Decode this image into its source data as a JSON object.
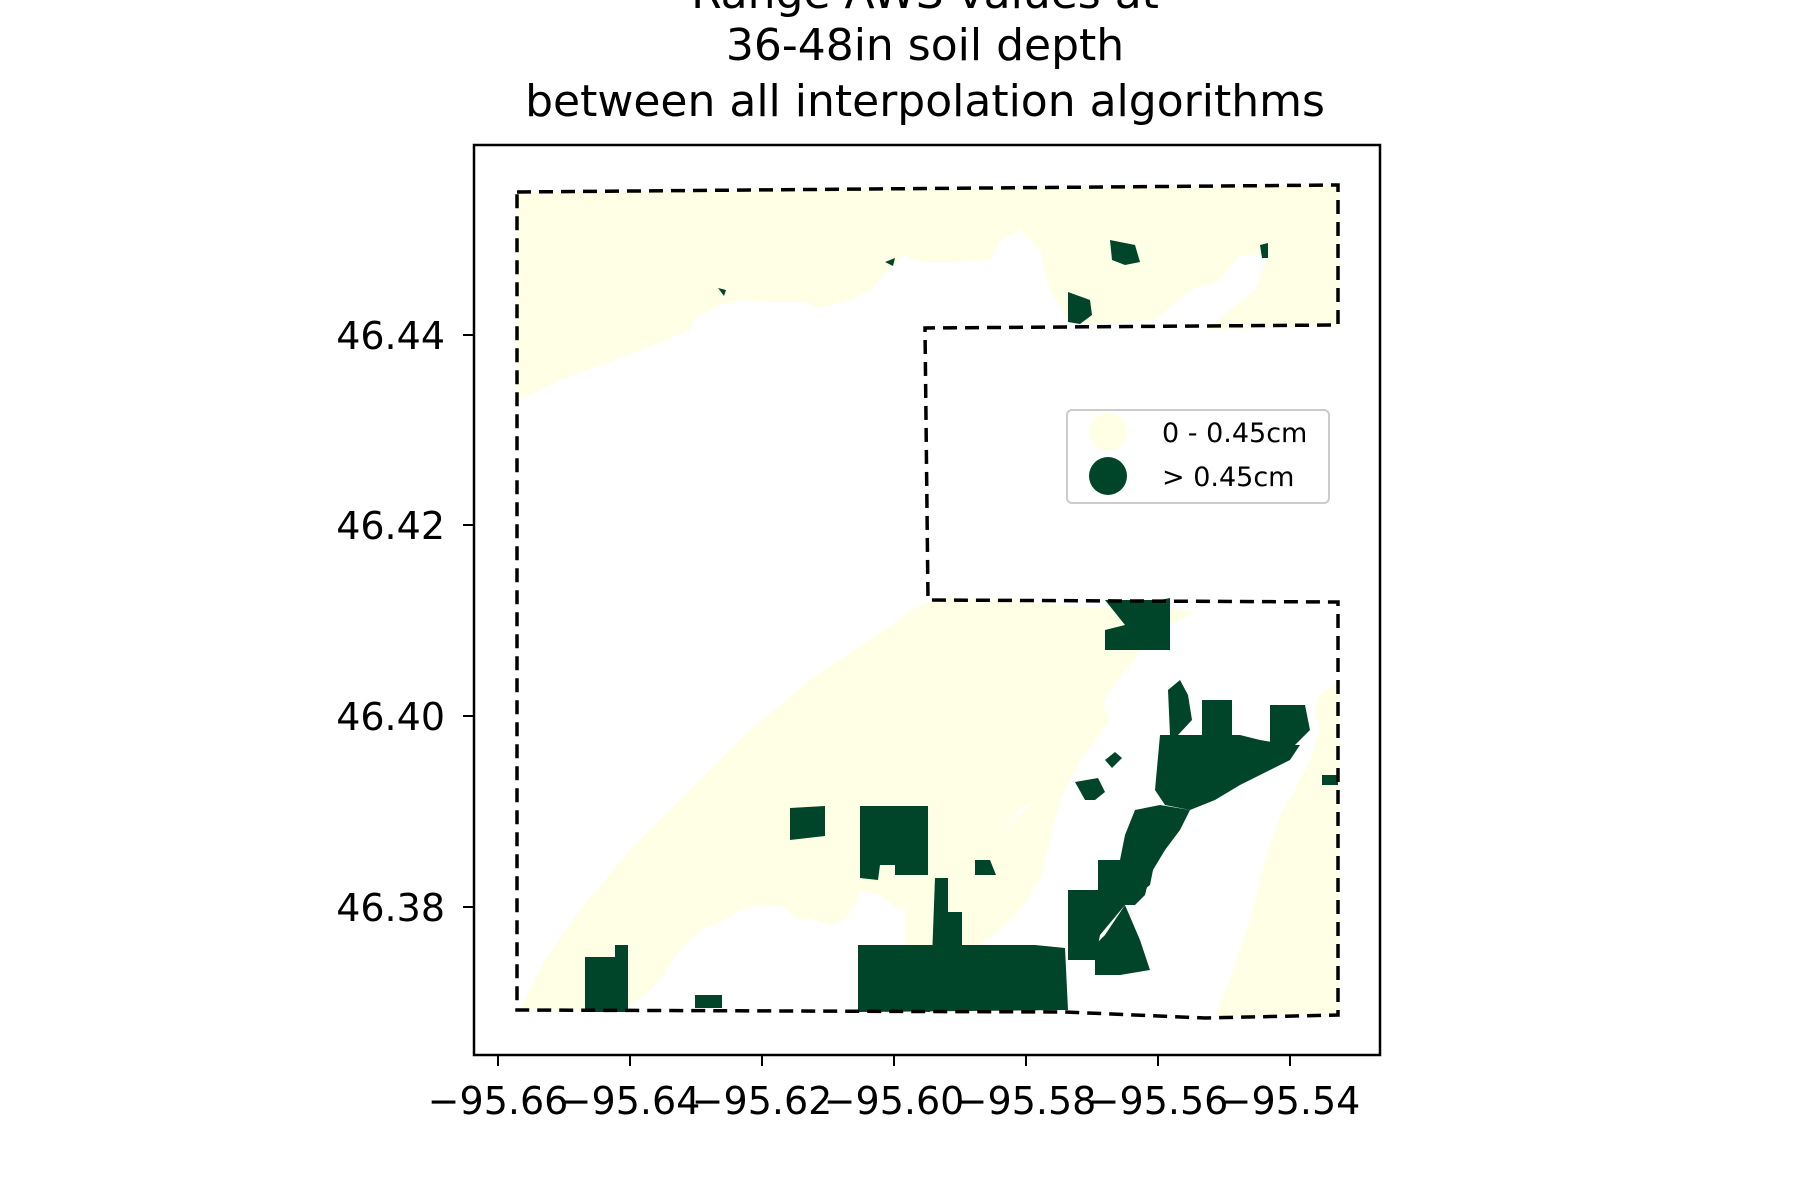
{
  "title": {
    "line1": "Range AWS values at",
    "line2": "36-48in soil depth",
    "line3": "between all interpolation algorithms"
  },
  "axes": {
    "x_ticks": [
      "−95.66",
      "−95.64",
      "−95.62",
      "−95.60",
      "−95.58",
      "−95.56",
      "−95.54"
    ],
    "y_ticks": [
      "46.38",
      "46.40",
      "46.42",
      "46.44"
    ]
  },
  "legend": {
    "items": [
      {
        "label": "0 - 0.45cm",
        "color": "#ffffe5"
      },
      {
        "label": "> 0.45cm",
        "color": "#004529"
      }
    ]
  },
  "colors": {
    "low": "#ffffe5",
    "high": "#004529",
    "boundary": "#000000"
  },
  "chart_data": {
    "type": "map",
    "x_ticks": [
      -95.66,
      -95.64,
      -95.62,
      -95.6,
      -95.58,
      -95.56,
      -95.54
    ],
    "y_ticks": [
      46.38,
      46.4,
      46.42,
      46.44
    ],
    "xlim": [
      -95.663,
      -95.526
    ],
    "ylim": [
      46.366,
      46.461
    ],
    "boundary_style": "dashed",
    "legend_position": "right-center",
    "classes": [
      "0 - 0.45cm",
      "> 0.45cm"
    ]
  }
}
